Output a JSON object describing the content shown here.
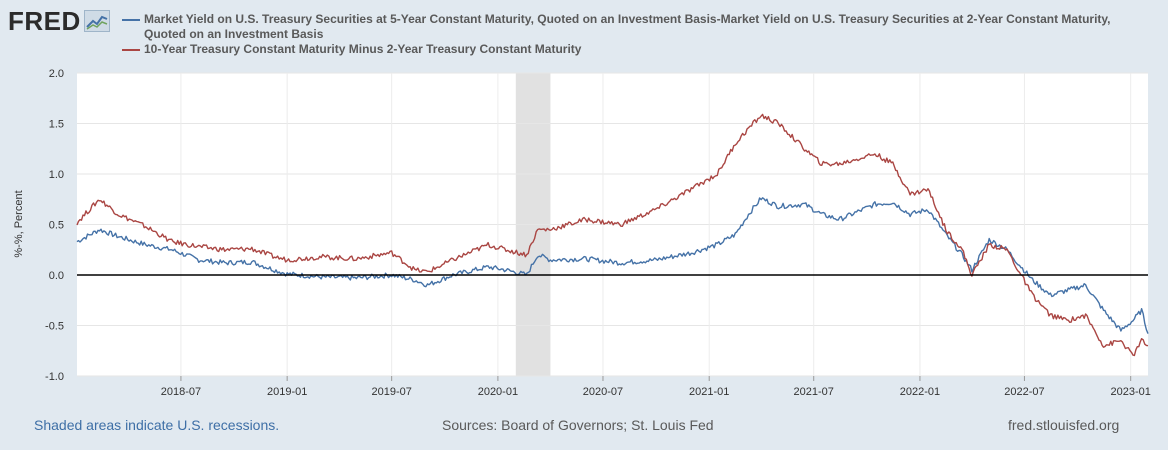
{
  "header": {
    "logo_text": "FRED",
    "logo_icon": "line-chart-icon"
  },
  "chart_data": {
    "type": "line",
    "ylabel": "%-%, Percent",
    "ylim": [
      -1.0,
      2.0
    ],
    "yticks": [
      "2.0",
      "1.5",
      "1.0",
      "0.5",
      "0.0",
      "-0.5",
      "-1.0"
    ],
    "xticks": [
      "2018-07",
      "2019-01",
      "2019-07",
      "2020-01",
      "2020-07",
      "2021-01",
      "2021-07",
      "2022-01",
      "2022-07",
      "2023-01"
    ],
    "x_range": [
      "2018-01-02",
      "2023-01-31"
    ],
    "recession": {
      "start": "2020-02",
      "end": "2020-04"
    },
    "series": [
      {
        "name": "Market Yield on U.S. Treasury Securities at 5-Year Constant Maturity, Quoted on an Investment Basis-Market Yield on U.S. Treasury Securities at 2-Year Constant Maturity, Quoted on an Investment Basis",
        "color": "#4572a7",
        "points": [
          [
            "2018-01-02",
            0.33
          ],
          [
            "2018-02-10",
            0.45
          ],
          [
            "2018-03-15",
            0.38
          ],
          [
            "2018-05-01",
            0.3
          ],
          [
            "2018-06-15",
            0.25
          ],
          [
            "2018-08-01",
            0.15
          ],
          [
            "2018-09-15",
            0.12
          ],
          [
            "2018-11-01",
            0.13
          ],
          [
            "2018-12-10",
            0.05
          ],
          [
            "2019-01-01",
            0.01
          ],
          [
            "2019-03-01",
            -0.02
          ],
          [
            "2019-05-01",
            -0.03
          ],
          [
            "2019-07-01",
            0.0
          ],
          [
            "2019-08-10",
            -0.05
          ],
          [
            "2019-09-01",
            -0.1
          ],
          [
            "2019-10-15",
            0.0
          ],
          [
            "2019-12-15",
            0.08
          ],
          [
            "2020-01-15",
            0.05
          ],
          [
            "2020-02-20",
            0.0
          ],
          [
            "2020-03-10",
            0.2
          ],
          [
            "2020-04-01",
            0.15
          ],
          [
            "2020-06-01",
            0.16
          ],
          [
            "2020-08-01",
            0.12
          ],
          [
            "2020-10-01",
            0.15
          ],
          [
            "2020-12-01",
            0.22
          ],
          [
            "2021-01-15",
            0.3
          ],
          [
            "2021-02-15",
            0.4
          ],
          [
            "2021-03-10",
            0.6
          ],
          [
            "2021-04-01",
            0.76
          ],
          [
            "2021-05-01",
            0.68
          ],
          [
            "2021-06-15",
            0.7
          ],
          [
            "2021-07-15",
            0.6
          ],
          [
            "2021-08-15",
            0.55
          ],
          [
            "2021-10-15",
            0.7
          ],
          [
            "2021-11-15",
            0.72
          ],
          [
            "2021-12-15",
            0.6
          ],
          [
            "2022-01-15",
            0.65
          ],
          [
            "2022-02-15",
            0.4
          ],
          [
            "2022-03-15",
            0.2
          ],
          [
            "2022-04-01",
            0.05
          ],
          [
            "2022-05-01",
            0.35
          ],
          [
            "2022-06-01",
            0.25
          ],
          [
            "2022-06-15",
            0.15
          ],
          [
            "2022-07-15",
            -0.05
          ],
          [
            "2022-08-15",
            -0.2
          ],
          [
            "2022-09-15",
            -0.15
          ],
          [
            "2022-10-15",
            -0.1
          ],
          [
            "2022-11-15",
            -0.35
          ],
          [
            "2022-12-15",
            -0.55
          ],
          [
            "2023-01-05",
            -0.45
          ],
          [
            "2023-01-20",
            -0.35
          ],
          [
            "2023-01-31",
            -0.58
          ]
        ]
      },
      {
        "name": "10-Year Treasury Constant Maturity Minus 2-Year Treasury Constant Maturity",
        "color": "#aa4643",
        "points": [
          [
            "2018-01-02",
            0.52
          ],
          [
            "2018-02-10",
            0.75
          ],
          [
            "2018-03-15",
            0.6
          ],
          [
            "2018-05-01",
            0.48
          ],
          [
            "2018-06-15",
            0.33
          ],
          [
            "2018-08-01",
            0.28
          ],
          [
            "2018-09-15",
            0.25
          ],
          [
            "2018-11-01",
            0.26
          ],
          [
            "2018-12-10",
            0.18
          ],
          [
            "2019-01-01",
            0.15
          ],
          [
            "2019-03-01",
            0.18
          ],
          [
            "2019-05-01",
            0.16
          ],
          [
            "2019-07-01",
            0.22
          ],
          [
            "2019-08-10",
            0.05
          ],
          [
            "2019-09-01",
            0.03
          ],
          [
            "2019-10-15",
            0.15
          ],
          [
            "2019-12-15",
            0.3
          ],
          [
            "2020-01-15",
            0.25
          ],
          [
            "2020-02-20",
            0.2
          ],
          [
            "2020-03-10",
            0.45
          ],
          [
            "2020-04-01",
            0.45
          ],
          [
            "2020-06-01",
            0.55
          ],
          [
            "2020-08-01",
            0.5
          ],
          [
            "2020-10-01",
            0.65
          ],
          [
            "2020-12-01",
            0.85
          ],
          [
            "2021-01-15",
            1.0
          ],
          [
            "2021-02-15",
            1.3
          ],
          [
            "2021-03-10",
            1.45
          ],
          [
            "2021-04-01",
            1.58
          ],
          [
            "2021-05-01",
            1.5
          ],
          [
            "2021-06-15",
            1.25
          ],
          [
            "2021-07-15",
            1.1
          ],
          [
            "2021-08-15",
            1.1
          ],
          [
            "2021-10-15",
            1.2
          ],
          [
            "2021-11-15",
            1.1
          ],
          [
            "2021-12-15",
            0.8
          ],
          [
            "2022-01-15",
            0.85
          ],
          [
            "2022-02-15",
            0.45
          ],
          [
            "2022-03-15",
            0.25
          ],
          [
            "2022-04-01",
            0.0
          ],
          [
            "2022-05-01",
            0.3
          ],
          [
            "2022-06-01",
            0.25
          ],
          [
            "2022-06-15",
            0.1
          ],
          [
            "2022-07-15",
            -0.2
          ],
          [
            "2022-08-15",
            -0.4
          ],
          [
            "2022-09-15",
            -0.45
          ],
          [
            "2022-10-15",
            -0.4
          ],
          [
            "2022-11-15",
            -0.7
          ],
          [
            "2022-12-15",
            -0.65
          ],
          [
            "2023-01-05",
            -0.8
          ],
          [
            "2023-01-20",
            -0.65
          ],
          [
            "2023-01-31",
            -0.7
          ]
        ]
      }
    ],
    "zero_line": 0.0
  },
  "footer": {
    "recession_note": "Shaded areas indicate U.S. recessions.",
    "sources": "Sources: Board of Governors; St. Louis Fed",
    "site": "fred.stlouisfed.org"
  }
}
